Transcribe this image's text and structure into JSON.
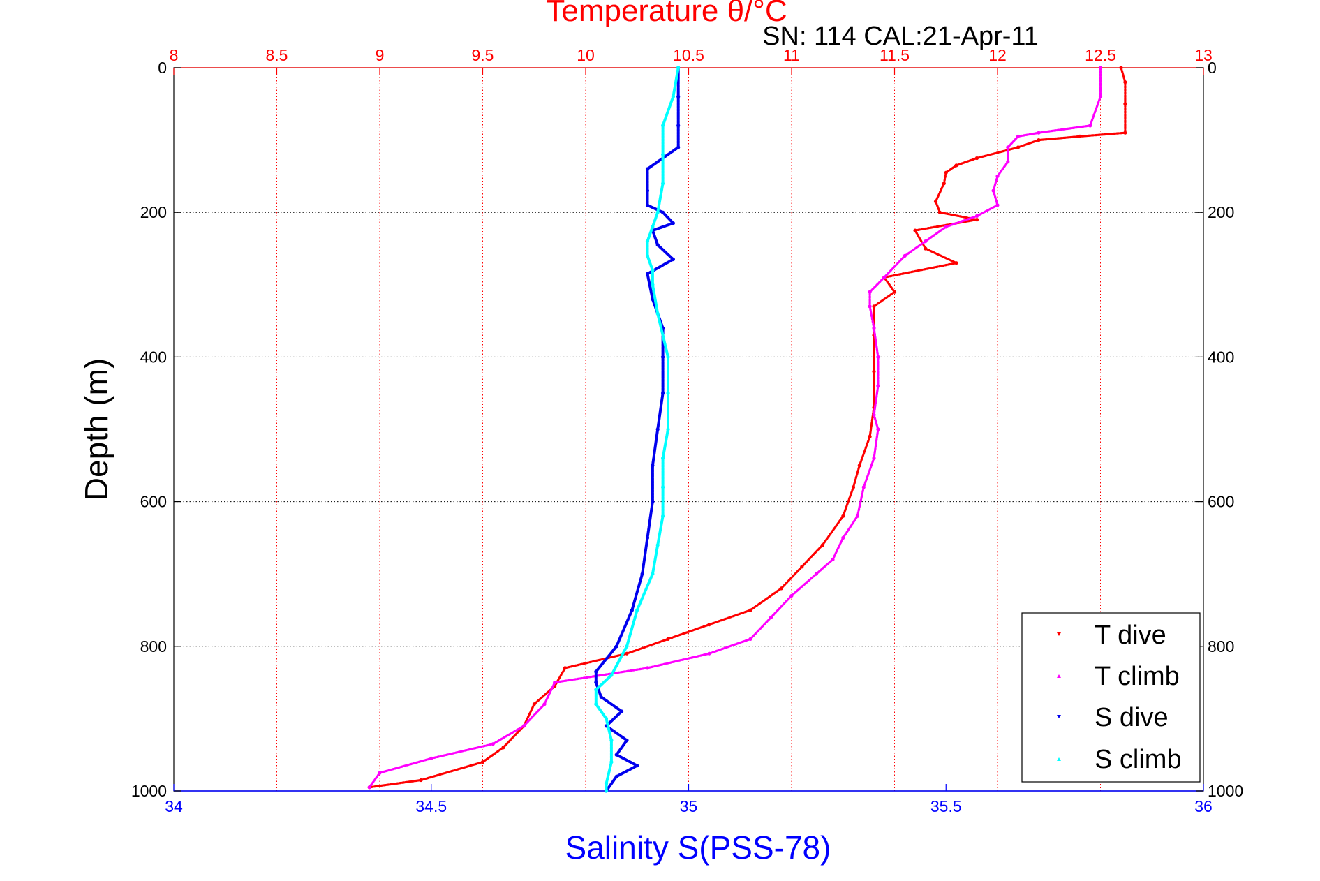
{
  "chart_data": {
    "type": "scatter",
    "title": "Temperature θ/°C",
    "subtitle": "SN: 114  CAL:21-Apr-11",
    "xlabel": "Salinity S(PSS-78)",
    "x2label": "Temperature θ/°C",
    "ylabel": "Depth (m)",
    "xlim": [
      34,
      36
    ],
    "x2lim": [
      8,
      13
    ],
    "ylim": [
      0,
      1000
    ],
    "y_reversed": true,
    "xticks": [
      34,
      34.5,
      35,
      35.5,
      36
    ],
    "xtick_labels": [
      "34",
      "34.5",
      "35",
      "35.5",
      "36"
    ],
    "x2ticks": [
      8,
      8.5,
      9,
      9.5,
      10,
      10.5,
      11,
      11.5,
      12,
      12.5,
      13
    ],
    "x2tick_labels": [
      "8",
      "8.5",
      "9",
      "9.5",
      "10",
      "10.5",
      "11",
      "11.5",
      "12",
      "12.5",
      "13"
    ],
    "yticks": [
      0,
      200,
      400,
      600,
      800,
      1000
    ],
    "ytick_labels": [
      "0",
      "200",
      "400",
      "600",
      "800",
      "1000"
    ],
    "grid": true,
    "legend": "bottom-right",
    "colors": {
      "temperature_axis": "#ff0000",
      "salinity_axis": "#0000ff",
      "t_dive": "#ff0000",
      "t_climb": "#ff00ff",
      "s_dive": "#0000ee",
      "s_climb": "#00ffff"
    },
    "series": [
      {
        "name": "T dive",
        "axis": "temperature",
        "color": "#ff0000",
        "depth": [
          0,
          20,
          50,
          90,
          95,
          100,
          110,
          125,
          135,
          145,
          160,
          185,
          200,
          210,
          225,
          250,
          270,
          290,
          310,
          330,
          370,
          420,
          470,
          510,
          550,
          580,
          620,
          660,
          690,
          720,
          750,
          770,
          790,
          810,
          830,
          855,
          880,
          910,
          940,
          960,
          985,
          995
        ],
        "values": [
          12.6,
          12.62,
          12.62,
          12.62,
          12.4,
          12.2,
          12.1,
          11.9,
          11.8,
          11.75,
          11.74,
          11.7,
          11.72,
          11.9,
          11.6,
          11.65,
          11.8,
          11.45,
          11.5,
          11.4,
          11.4,
          11.4,
          11.4,
          11.38,
          11.33,
          11.3,
          11.25,
          11.15,
          11.05,
          10.95,
          10.8,
          10.6,
          10.4,
          10.2,
          9.9,
          9.85,
          9.75,
          9.7,
          9.6,
          9.5,
          9.2,
          8.95
        ]
      },
      {
        "name": "T climb",
        "axis": "temperature",
        "color": "#ff00ff",
        "depth": [
          0,
          40,
          80,
          90,
          95,
          110,
          130,
          150,
          170,
          190,
          205,
          220,
          240,
          260,
          290,
          310,
          330,
          360,
          400,
          440,
          480,
          500,
          540,
          580,
          620,
          650,
          680,
          700,
          730,
          760,
          790,
          810,
          830,
          850,
          880,
          910,
          935,
          955,
          975,
          995
        ],
        "values": [
          12.5,
          12.5,
          12.45,
          12.2,
          12.1,
          12.05,
          12.05,
          12.0,
          11.98,
          12.0,
          11.9,
          11.75,
          11.65,
          11.55,
          11.45,
          11.38,
          11.38,
          11.4,
          11.42,
          11.42,
          11.4,
          11.42,
          11.4,
          11.35,
          11.32,
          11.25,
          11.2,
          11.12,
          11.0,
          10.9,
          10.8,
          10.6,
          10.3,
          9.85,
          9.8,
          9.7,
          9.55,
          9.25,
          9.0,
          8.95
        ]
      },
      {
        "name": "S dive",
        "axis": "salinity",
        "color": "#0000ee",
        "depth": [
          0,
          40,
          80,
          110,
          140,
          170,
          190,
          200,
          215,
          225,
          245,
          265,
          285,
          320,
          360,
          400,
          450,
          500,
          550,
          600,
          650,
          700,
          750,
          800,
          835,
          850,
          870,
          890,
          910,
          930,
          950,
          965,
          980,
          1000
        ],
        "values": [
          34.98,
          34.98,
          34.98,
          34.98,
          34.92,
          34.92,
          34.92,
          34.95,
          34.97,
          34.93,
          34.94,
          34.97,
          34.92,
          34.93,
          34.95,
          34.95,
          34.95,
          34.94,
          34.93,
          34.93,
          34.92,
          34.91,
          34.89,
          34.86,
          34.82,
          34.82,
          34.83,
          34.87,
          34.84,
          34.88,
          34.86,
          34.9,
          34.86,
          34.84
        ]
      },
      {
        "name": "S climb",
        "axis": "salinity",
        "color": "#00ffff",
        "depth": [
          0,
          40,
          80,
          120,
          160,
          200,
          220,
          240,
          260,
          280,
          300,
          340,
          400,
          450,
          500,
          540,
          580,
          620,
          660,
          700,
          750,
          800,
          840,
          860,
          880,
          900,
          930,
          960,
          990,
          1000
        ],
        "values": [
          34.98,
          34.97,
          34.95,
          34.95,
          34.95,
          34.94,
          34.93,
          34.92,
          34.92,
          34.93,
          34.93,
          34.94,
          34.96,
          34.96,
          34.96,
          34.95,
          34.95,
          34.95,
          34.94,
          34.93,
          34.9,
          34.88,
          34.85,
          34.82,
          34.82,
          34.84,
          34.85,
          34.85,
          34.84,
          34.84
        ]
      }
    ]
  }
}
